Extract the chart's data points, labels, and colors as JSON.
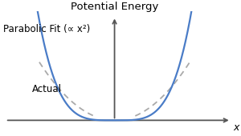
{
  "title": "Potential Energy",
  "xlabel": "x",
  "actual_label": "Actual",
  "parabolic_label": "Parabolic Fit (∝ x²)",
  "actual_color": "#4a7cc7",
  "actual_linewidth": 1.6,
  "parabolic_color": "#aaaaaa",
  "parabolic_linewidth": 1.3,
  "background_color": "#ffffff",
  "axis_color": "#555555",
  "text_color": "#000000",
  "title_fontsize": 9.5,
  "label_fontsize": 9,
  "annotation_fontsize": 8.5
}
